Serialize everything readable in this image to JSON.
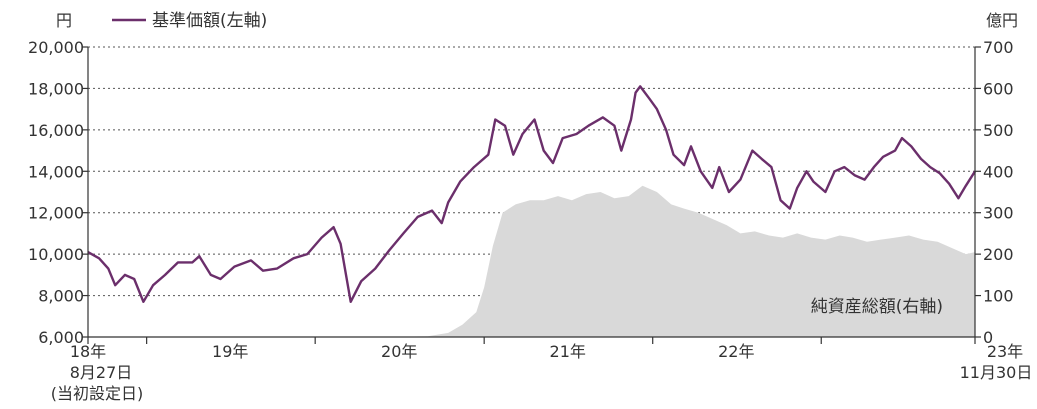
{
  "chart_data": {
    "type": "line",
    "left_axis": {
      "unit": "円",
      "ylim": [
        6000,
        20000
      ],
      "tick_labels": [
        "6,000",
        "8,000",
        "10,000",
        "12,000",
        "14,000",
        "16,000",
        "18,000",
        "20,000"
      ],
      "tick_values": [
        6000,
        8000,
        10000,
        12000,
        14000,
        16000,
        18000,
        20000
      ]
    },
    "right_axis": {
      "unit": "億円",
      "ylim": [
        0,
        700
      ],
      "tick_labels": [
        "0",
        "100",
        "200",
        "300",
        "400",
        "500",
        "600",
        "700"
      ],
      "tick_values": [
        0,
        100,
        200,
        300,
        400,
        500,
        600,
        700
      ]
    },
    "x_axis": {
      "start_label": "18年",
      "start_sub": "8月27日",
      "start_sub2": "(当初設定日)",
      "end_label": "23年",
      "end_sub": "11月30日",
      "year_labels": [
        "19年",
        "20年",
        "21年",
        "22年"
      ],
      "range": [
        "2018-08-27",
        "2023-11-30"
      ]
    },
    "legend": {
      "label": "基準価額(左軸)",
      "color": "#6b2f6b"
    },
    "area_label": "純資産総額(右軸)",
    "area_color": "#d9d9d9",
    "series": [
      {
        "name": "基準価額(左軸)",
        "axis": "left",
        "points": [
          [
            "2018-08-27",
            10100
          ],
          [
            "2018-09-20",
            9800
          ],
          [
            "2018-10-10",
            9300
          ],
          [
            "2018-10-25",
            8500
          ],
          [
            "2018-11-15",
            9000
          ],
          [
            "2018-12-05",
            8800
          ],
          [
            "2018-12-25",
            7700
          ],
          [
            "2019-01-15",
            8500
          ],
          [
            "2019-02-10",
            9000
          ],
          [
            "2019-03-10",
            9600
          ],
          [
            "2019-04-10",
            9600
          ],
          [
            "2019-04-25",
            9900
          ],
          [
            "2019-05-20",
            9000
          ],
          [
            "2019-06-10",
            8800
          ],
          [
            "2019-07-10",
            9400
          ],
          [
            "2019-08-15",
            9700
          ],
          [
            "2019-09-10",
            9200
          ],
          [
            "2019-10-10",
            9300
          ],
          [
            "2019-11-15",
            9800
          ],
          [
            "2019-12-15",
            10000
          ],
          [
            "2020-01-15",
            10800
          ],
          [
            "2020-02-10",
            11300
          ],
          [
            "2020-02-25",
            10500
          ],
          [
            "2020-03-18",
            7700
          ],
          [
            "2020-04-10",
            8700
          ],
          [
            "2020-05-10",
            9300
          ],
          [
            "2020-06-10",
            10200
          ],
          [
            "2020-07-10",
            11000
          ],
          [
            "2020-08-10",
            11800
          ],
          [
            "2020-09-10",
            12100
          ],
          [
            "2020-10-01",
            11500
          ],
          [
            "2020-10-15",
            12500
          ],
          [
            "2020-11-10",
            13500
          ],
          [
            "2020-12-10",
            14200
          ],
          [
            "2021-01-10",
            14800
          ],
          [
            "2021-01-25",
            16500
          ],
          [
            "2021-02-15",
            16200
          ],
          [
            "2021-03-05",
            14800
          ],
          [
            "2021-03-25",
            15800
          ],
          [
            "2021-04-20",
            16500
          ],
          [
            "2021-05-10",
            15000
          ],
          [
            "2021-05-30",
            14400
          ],
          [
            "2021-06-20",
            15600
          ],
          [
            "2021-07-20",
            15800
          ],
          [
            "2021-08-15",
            16200
          ],
          [
            "2021-09-15",
            16600
          ],
          [
            "2021-10-10",
            16200
          ],
          [
            "2021-10-25",
            15000
          ],
          [
            "2021-11-15",
            16500
          ],
          [
            "2021-11-25",
            17800
          ],
          [
            "2021-12-05",
            18100
          ],
          [
            "2021-12-25",
            17500
          ],
          [
            "2022-01-10",
            17000
          ],
          [
            "2022-01-30",
            16000
          ],
          [
            "2022-02-15",
            14800
          ],
          [
            "2022-03-10",
            14300
          ],
          [
            "2022-03-25",
            15200
          ],
          [
            "2022-04-15",
            14000
          ],
          [
            "2022-05-10",
            13200
          ],
          [
            "2022-05-25",
            14200
          ],
          [
            "2022-06-15",
            13000
          ],
          [
            "2022-07-10",
            13600
          ],
          [
            "2022-08-05",
            15000
          ],
          [
            "2022-08-25",
            14600
          ],
          [
            "2022-09-15",
            14200
          ],
          [
            "2022-10-05",
            12600
          ],
          [
            "2022-10-25",
            12200
          ],
          [
            "2022-11-10",
            13200
          ],
          [
            "2022-11-30",
            14000
          ],
          [
            "2022-12-15",
            13500
          ],
          [
            "2023-01-10",
            13000
          ],
          [
            "2023-01-30",
            14000
          ],
          [
            "2023-02-20",
            14200
          ],
          [
            "2023-03-15",
            13800
          ],
          [
            "2023-04-05",
            13600
          ],
          [
            "2023-04-25",
            14200
          ],
          [
            "2023-05-15",
            14700
          ],
          [
            "2023-06-10",
            15000
          ],
          [
            "2023-06-25",
            15600
          ],
          [
            "2023-07-15",
            15200
          ],
          [
            "2023-08-05",
            14600
          ],
          [
            "2023-08-25",
            14200
          ],
          [
            "2023-09-15",
            13900
          ],
          [
            "2023-10-05",
            13400
          ],
          [
            "2023-10-25",
            12700
          ],
          [
            "2023-11-10",
            13300
          ],
          [
            "2023-11-30",
            14000
          ]
        ]
      },
      {
        "name": "純資産総額(右軸)",
        "axis": "right",
        "points": [
          [
            "2018-08-27",
            0
          ],
          [
            "2020-06-01",
            0
          ],
          [
            "2020-09-01",
            2
          ],
          [
            "2020-10-15",
            10
          ],
          [
            "2020-11-15",
            30
          ],
          [
            "2020-12-15",
            60
          ],
          [
            "2021-01-01",
            120
          ],
          [
            "2021-01-20",
            220
          ],
          [
            "2021-02-10",
            300
          ],
          [
            "2021-03-10",
            320
          ],
          [
            "2021-04-10",
            330
          ],
          [
            "2021-05-10",
            330
          ],
          [
            "2021-06-10",
            340
          ],
          [
            "2021-07-10",
            330
          ],
          [
            "2021-08-10",
            345
          ],
          [
            "2021-09-10",
            350
          ],
          [
            "2021-10-10",
            335
          ],
          [
            "2021-11-10",
            340
          ],
          [
            "2021-12-10",
            365
          ],
          [
            "2022-01-10",
            350
          ],
          [
            "2022-02-10",
            320
          ],
          [
            "2022-03-10",
            310
          ],
          [
            "2022-04-10",
            300
          ],
          [
            "2022-05-10",
            285
          ],
          [
            "2022-06-10",
            270
          ],
          [
            "2022-07-10",
            250
          ],
          [
            "2022-08-10",
            255
          ],
          [
            "2022-09-10",
            245
          ],
          [
            "2022-10-10",
            240
          ],
          [
            "2022-11-10",
            250
          ],
          [
            "2022-12-10",
            240
          ],
          [
            "2023-01-10",
            235
          ],
          [
            "2023-02-10",
            245
          ],
          [
            "2023-03-10",
            240
          ],
          [
            "2023-04-10",
            230
          ],
          [
            "2023-05-10",
            235
          ],
          [
            "2023-06-10",
            240
          ],
          [
            "2023-07-10",
            245
          ],
          [
            "2023-08-10",
            235
          ],
          [
            "2023-09-10",
            230
          ],
          [
            "2023-10-10",
            215
          ],
          [
            "2023-11-10",
            200
          ],
          [
            "2023-11-30",
            205
          ]
        ]
      }
    ]
  }
}
